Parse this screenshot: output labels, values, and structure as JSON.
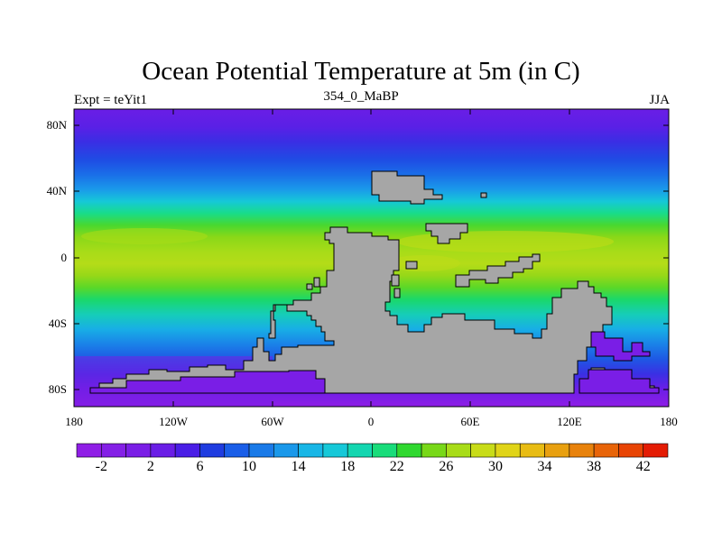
{
  "title": "Ocean Potential Temperature at 5m (in C)",
  "left_label": "Expt = teYit1",
  "center_label": "354_0_MaBP",
  "right_label": "JJA",
  "y_ticks": [
    "80N",
    "40N",
    "0",
    "40S",
    "80S"
  ],
  "x_ticks": [
    "180",
    "120W",
    "60W",
    "0",
    "60E",
    "120E",
    "180"
  ],
  "colorbar": {
    "labels": [
      "-2",
      "2",
      "6",
      "10",
      "14",
      "18",
      "22",
      "26",
      "30",
      "34",
      "38",
      "42"
    ],
    "colors": [
      "#8f1ee6",
      "#8420e6",
      "#7a1ee6",
      "#6a1ee6",
      "#4a1ee6",
      "#1f3ce0",
      "#1a5ee8",
      "#1a7ae8",
      "#1a98ea",
      "#18b6e6",
      "#16c8d8",
      "#14d6b0",
      "#18dc7a",
      "#30d830",
      "#78d818",
      "#a8dc18",
      "#c8dc18",
      "#e0d418",
      "#e8bc14",
      "#e8a010",
      "#e8820c",
      "#e86408",
      "#e84404",
      "#e41c04"
    ]
  },
  "land_color": "#a6a6a6"
}
